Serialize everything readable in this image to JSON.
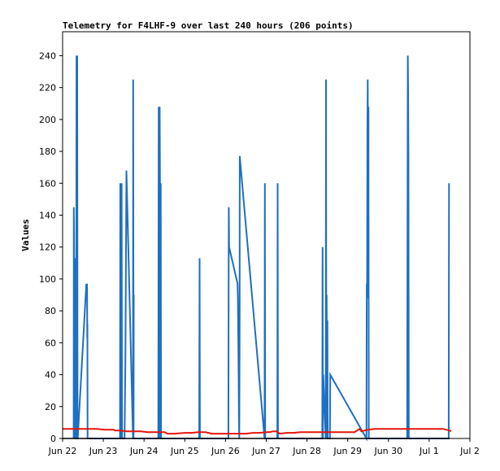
{
  "chart_data": {
    "type": "line",
    "title": "Telemetry for F4LHF-9 over last 240 hours (206 points)",
    "xlabel": "",
    "ylabel": "Values",
    "xlim": [
      0,
      240
    ],
    "ylim": [
      0,
      255
    ],
    "x_ticks": [
      {
        "x": 0,
        "label": "Jun 22"
      },
      {
        "x": 24,
        "label": "Jun 23"
      },
      {
        "x": 48,
        "label": "Jun 24"
      },
      {
        "x": 72,
        "label": "Jun 25"
      },
      {
        "x": 96,
        "label": "Jun 26"
      },
      {
        "x": 120,
        "label": "Jun 27"
      },
      {
        "x": 144,
        "label": "Jun 28"
      },
      {
        "x": 168,
        "label": "Jun 29"
      },
      {
        "x": 192,
        "label": "Jun 30"
      },
      {
        "x": 216,
        "label": "Jul 1"
      },
      {
        "x": 240,
        "label": "Jul 2"
      }
    ],
    "y_ticks": [
      0,
      20,
      40,
      60,
      80,
      100,
      120,
      140,
      160,
      180,
      200,
      220,
      240
    ],
    "grid": false,
    "series": [
      {
        "color": "#1f6fc2",
        "x": [
          6.5,
          6.6,
          6.7,
          6.8,
          6.9,
          7.0,
          7.1,
          7.2,
          7.3,
          7.4,
          7.5,
          7.6,
          8.0,
          8.2,
          8.4,
          8.6,
          8.8,
          8.9,
          14.0,
          14.1,
          14.2,
          14.3,
          14.4,
          14.5,
          14.6,
          14.7,
          15.0,
          33.8,
          34.0,
          34.2,
          34.4,
          34.6,
          34.8,
          35.0,
          36.3,
          36.5,
          37.0,
          37.2,
          37.4,
          37.6,
          41.5,
          41.6,
          41.8,
          41.9,
          41.6,
          56.4,
          56.6,
          56.8,
          57.0,
          57.2,
          57.4,
          57.6,
          57.8,
          58.0,
          58.2,
          80.5,
          80.7,
          80.9,
          97.7,
          97.9,
          98.1,
          103.1,
          103.3,
          103.5,
          103.7,
          103.9,
          104.1,
          104.3,
          104.4,
          119.0,
          119.2,
          119.4,
          119.6,
          126.5,
          126.7,
          126.9,
          153.0,
          153.2,
          153.4,
          153.6,
          155.0,
          155.2,
          155.4,
          155.6,
          155.8,
          156.0,
          156.2,
          157.5,
          157.7,
          179.0,
          179.2,
          179.4,
          179.6,
          179.8,
          180.0,
          180.2,
          180.4,
          180.5,
          203.0,
          203.2,
          203.4,
          203.6,
          203.8,
          204.0,
          204.2,
          204.4,
          227.5,
          227.7
        ],
        "values": [
          0,
          145,
          133,
          113,
          96,
          72,
          51,
          30,
          12,
          0,
          113,
          0,
          0,
          240,
          0,
          240,
          0,
          0,
          97,
          90,
          97,
          88,
          97,
          63,
          72,
          0,
          0,
          0,
          160,
          0,
          160,
          0,
          160,
          0,
          0,
          0,
          48,
          90,
          128,
          168,
          0,
          225,
          0,
          90,
          0,
          0,
          208,
          160,
          0,
          208,
          160,
          0,
          160,
          0,
          0,
          0,
          113,
          0,
          0,
          145,
          120,
          97,
          88,
          63,
          40,
          12,
          0,
          65,
          177,
          0,
          160,
          0,
          0,
          0,
          160,
          0,
          0,
          120,
          0,
          40,
          0,
          225,
          0,
          90,
          0,
          74,
          0,
          0,
          40,
          0,
          97,
          88,
          192,
          225,
          160,
          208,
          0,
          0,
          0,
          128,
          240,
          217,
          177,
          0,
          0,
          0,
          0,
          160
        ]
      },
      {
        "color": "#e3150d",
        "x": [
          0,
          5,
          10,
          15,
          20,
          25,
          30,
          31,
          34,
          38,
          42,
          46,
          50,
          55,
          60,
          62,
          66,
          72,
          76,
          80,
          84,
          88,
          92,
          96,
          100,
          104,
          108,
          112,
          116,
          120,
          122,
          124,
          126,
          128,
          132,
          136,
          140,
          144,
          148,
          152,
          156,
          160,
          164,
          166,
          168,
          172,
          175,
          176,
          180,
          184,
          188,
          192,
          196,
          200,
          204,
          208,
          212,
          216,
          218,
          220,
          224,
          228,
          229
        ],
        "values": [
          6,
          6,
          6,
          6,
          6,
          5.5,
          5.5,
          5,
          5,
          4.5,
          4.5,
          4.5,
          4,
          4,
          4,
          3,
          3,
          3.5,
          3.5,
          4,
          4,
          3,
          3,
          3,
          3,
          3,
          3,
          3.5,
          3.5,
          4,
          4,
          4.5,
          4.5,
          3,
          3.5,
          3.5,
          4,
          4,
          4,
          4,
          4,
          4,
          4,
          4,
          4,
          4,
          6,
          4.5,
          5.5,
          6,
          6,
          6,
          6,
          6,
          6,
          6,
          6,
          6,
          6,
          6,
          6,
          5,
          4.5
        ]
      },
      {
        "color": "#000000",
        "x": [
          0,
          228
        ],
        "values": [
          0,
          0
        ]
      }
    ]
  }
}
